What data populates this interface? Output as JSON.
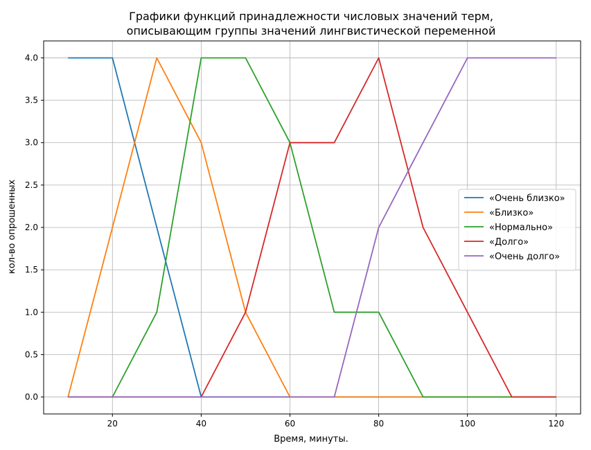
{
  "chart_data": {
    "type": "line",
    "title_lines": [
      "Графики функций принадлежности числовых значений терм,",
      "описывающим группы значений лингвистической переменной"
    ],
    "xlabel": "Время, минуты.",
    "ylabel": "кол-во опрошенных",
    "x": [
      10,
      20,
      30,
      40,
      50,
      60,
      70,
      80,
      90,
      100,
      110,
      120
    ],
    "xlim": [
      4.5,
      125.5
    ],
    "ylim": [
      -0.2,
      4.2
    ],
    "x_ticks": [
      20,
      40,
      60,
      80,
      100,
      120
    ],
    "y_ticks": [
      0.0,
      0.5,
      1.0,
      1.5,
      2.0,
      2.5,
      3.0,
      3.5,
      4.0
    ],
    "x_tick_labels": [
      "20",
      "40",
      "60",
      "80",
      "100",
      "120"
    ],
    "y_tick_labels": [
      "0.0",
      "0.5",
      "1.0",
      "1.5",
      "2.0",
      "2.5",
      "3.0",
      "3.5",
      "4.0"
    ],
    "grid": true,
    "legend_position": "center-right",
    "series": [
      {
        "name": "«Очень близко»",
        "color": "#1f77b4",
        "values": [
          4,
          4,
          2,
          0,
          0,
          0,
          0,
          0,
          0,
          0,
          0,
          0
        ]
      },
      {
        "name": "«Близко»",
        "color": "#ff7f0e",
        "values": [
          0,
          2,
          4,
          3,
          1,
          0,
          0,
          0,
          0,
          0,
          0,
          0
        ]
      },
      {
        "name": "«Нормально»",
        "color": "#2ca02c",
        "values": [
          0,
          0,
          1,
          4,
          4,
          3,
          1,
          1,
          0,
          0,
          0,
          0
        ]
      },
      {
        "name": "«Долго»",
        "color": "#d62728",
        "values": [
          0,
          0,
          0,
          0,
          1,
          3,
          3,
          4,
          2,
          1,
          0,
          0
        ]
      },
      {
        "name": "«Очень долго»",
        "color": "#9467bd",
        "values": [
          0,
          0,
          0,
          0,
          0,
          0,
          0,
          2,
          3,
          4,
          4,
          4
        ]
      }
    ]
  }
}
